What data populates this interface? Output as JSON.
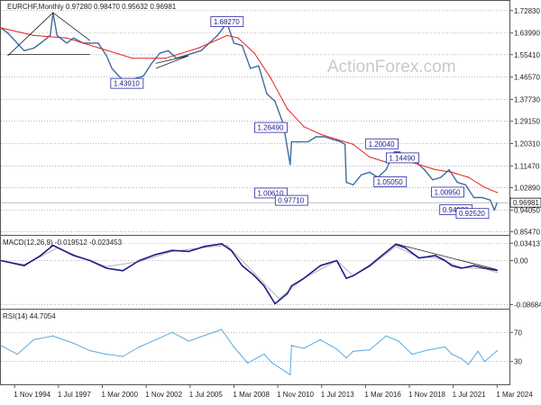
{
  "chart_data": [
    {
      "type": "line",
      "header": "EURCHF,Monthly  0.97280  0.98470  0.95632  0.96981",
      "y_ticks": [
        "1.72830",
        "1.63990",
        "1.55410",
        "1.46570",
        "1.37730",
        "1.29150",
        "1.20310",
        "1.11470",
        "1.02890",
        "0.94050",
        "0.85470"
      ],
      "y_ticks_values": [
        1.7283,
        1.6399,
        1.5541,
        1.4657,
        1.3773,
        1.2915,
        1.2031,
        1.1147,
        1.0289,
        0.9405,
        0.8547
      ],
      "ylim": [
        0.846,
        1.763
      ],
      "current_price": "0.96981",
      "current_value": 0.96981,
      "price": {
        "x": [
          "1994-01",
          "1994-06",
          "1995-06",
          "1996-01",
          "1996-06",
          "1997-01",
          "1997-03",
          "1997-06",
          "1998-01",
          "1998-06",
          "1999-01",
          "1999-06",
          "1999-12",
          "2000-06",
          "2000-10",
          "2001-03",
          "2001-09",
          "2002-03",
          "2002-09",
          "2003-03",
          "2003-09",
          "2004-03",
          "2004-09",
          "2005-03",
          "2005-09",
          "2006-03",
          "2006-09",
          "2007-03",
          "2007-10",
          "2008-03",
          "2008-09",
          "2009-03",
          "2009-09",
          "2010-03",
          "2010-09",
          "2011-03",
          "2011-08",
          "2011-09",
          "2012-03",
          "2012-09",
          "2013-03",
          "2013-09",
          "2014-03",
          "2014-09",
          "2014-12",
          "2015-01",
          "2015-06",
          "2015-12",
          "2016-06",
          "2016-12",
          "2017-06",
          "2017-12",
          "2018-04",
          "2018-10",
          "2019-04",
          "2019-10",
          "2020-04",
          "2020-10",
          "2021-04",
          "2021-10",
          "2022-04",
          "2022-10",
          "2023-04",
          "2023-10",
          "2024-01",
          "2024-03"
        ],
        "close": [
          1.66,
          1.64,
          1.57,
          1.58,
          1.6,
          1.63,
          1.72,
          1.63,
          1.6,
          1.62,
          1.6,
          1.6,
          1.6,
          1.55,
          1.5,
          1.47,
          1.44,
          1.46,
          1.47,
          1.52,
          1.56,
          1.57,
          1.54,
          1.55,
          1.56,
          1.57,
          1.6,
          1.63,
          1.68,
          1.6,
          1.59,
          1.5,
          1.51,
          1.4,
          1.37,
          1.28,
          1.12,
          1.21,
          1.21,
          1.21,
          1.23,
          1.23,
          1.22,
          1.21,
          1.2,
          1.05,
          1.04,
          1.08,
          1.09,
          1.07,
          1.1,
          1.17,
          1.17,
          1.13,
          1.13,
          1.1,
          1.06,
          1.07,
          1.1,
          1.05,
          1.04,
          0.99,
          0.99,
          0.98,
          0.94,
          0.96981
        ]
      },
      "ma": {
        "x": [
          "1994-01",
          "1996-01",
          "1998-01",
          "2000-01",
          "2002-01",
          "2004-01",
          "2006-01",
          "2007-10",
          "2008-06",
          "2009-06",
          "2010-06",
          "2011-06",
          "2012-06",
          "2013-06",
          "2014-06",
          "2015-06",
          "2016-06",
          "2017-06",
          "2018-06",
          "2019-06",
          "2020-06",
          "2021-06",
          "2022-06",
          "2023-06",
          "2024-03"
        ],
        "values": [
          1.66,
          1.63,
          1.62,
          1.58,
          1.54,
          1.54,
          1.58,
          1.63,
          1.62,
          1.56,
          1.46,
          1.34,
          1.27,
          1.24,
          1.22,
          1.2,
          1.15,
          1.13,
          1.14,
          1.12,
          1.1,
          1.09,
          1.07,
          1.03,
          1.01
        ]
      },
      "annotations": [
        {
          "text": "1.68270",
          "x": "2007-10",
          "y": 1.6827
        },
        {
          "text": "1.43910",
          "x": "2001-09",
          "y": 1.4391
        },
        {
          "text": "1.26490",
          "x": "2010-06",
          "y": 1.2649
        },
        {
          "text": "1.00610",
          "x": "2010-06",
          "y": 1.0061
        },
        {
          "text": "0.97710",
          "x": "2011-09",
          "y": 0.9771
        },
        {
          "text": "1.20040",
          "x": "2017-03",
          "y": 1.2004
        },
        {
          "text": "1.14490",
          "x": "2018-06",
          "y": 1.1449
        },
        {
          "text": "1.05050",
          "x": "2017-09",
          "y": 1.0505
        },
        {
          "text": "1.00950",
          "x": "2021-03",
          "y": 1.0095
        },
        {
          "text": "0.94020",
          "x": "2021-09",
          "y": 0.9402
        },
        {
          "text": "0.92520",
          "x": "2022-09",
          "y": 0.9252
        }
      ],
      "watermark": "ActionForex.com"
    },
    {
      "type": "line",
      "header": "MACD(12,26,9) -0.019512 -0.023453",
      "y_ticks": [
        "0.034137",
        "0.00",
        "-0.086849"
      ],
      "y_ticks_values": [
        0.034137,
        0.0,
        -0.086849
      ],
      "ylim": [
        -0.093,
        0.047
      ],
      "macd": {
        "x": [
          "1994-01",
          "1995-06",
          "1996-06",
          "1997-03",
          "1998-06",
          "1999-06",
          "2000-06",
          "2001-06",
          "2002-06",
          "2003-06",
          "2004-06",
          "2005-06",
          "2006-06",
          "2007-06",
          "2008-01",
          "2008-09",
          "2009-06",
          "2010-01",
          "2010-09",
          "2011-06",
          "2011-09",
          "2012-06",
          "2013-06",
          "2014-06",
          "2015-01",
          "2015-06",
          "2016-06",
          "2017-03",
          "2018-01",
          "2018-08",
          "2019-06",
          "2020-06",
          "2021-01",
          "2021-06",
          "2022-01",
          "2022-10",
          "2023-06",
          "2024-03"
        ],
        "values": [
          0.0,
          -0.01,
          0.01,
          0.03,
          0.01,
          0.0,
          -0.015,
          -0.02,
          0.0,
          0.012,
          0.02,
          0.018,
          0.028,
          0.033,
          0.02,
          -0.01,
          -0.03,
          -0.05,
          -0.085,
          -0.065,
          -0.05,
          -0.035,
          -0.01,
          0.0,
          -0.035,
          -0.03,
          -0.01,
          0.01,
          0.032,
          0.025,
          0.005,
          0.01,
          0.0,
          -0.01,
          -0.015,
          -0.01,
          -0.015,
          -0.0195
        ]
      },
      "signal": {
        "x": [
          "1994-01",
          "1995-06",
          "1996-06",
          "1997-06",
          "1998-06",
          "2000-06",
          "2002-06",
          "2004-06",
          "2006-06",
          "2007-10",
          "2008-09",
          "2010-01",
          "2010-12",
          "2012-06",
          "2014-06",
          "2015-06",
          "2016-06",
          "2018-01",
          "2019-06",
          "2020-06",
          "2022-01",
          "2023-06",
          "2024-03"
        ],
        "values": [
          0.0,
          -0.008,
          0.008,
          0.025,
          0.012,
          -0.012,
          -0.002,
          0.018,
          0.026,
          0.03,
          0.0,
          -0.045,
          -0.075,
          -0.035,
          0.0,
          -0.03,
          -0.012,
          0.028,
          0.006,
          0.006,
          -0.014,
          -0.016,
          -0.0235
        ]
      }
    },
    {
      "type": "line",
      "header": "RSI(14) 44.7054",
      "y_ticks": [
        "70",
        "30"
      ],
      "y_ticks_values": [
        70,
        30
      ],
      "ylim": [
        0,
        100
      ],
      "rsi": {
        "x": [
          "1994-01",
          "1995-01",
          "1996-01",
          "1997-03",
          "1998-06",
          "1999-06",
          "2000-06",
          "2001-06",
          "2002-06",
          "2003-06",
          "2004-06",
          "2005-06",
          "2006-06",
          "2007-06",
          "2008-03",
          "2009-01",
          "2010-01",
          "2010-07",
          "2011-08",
          "2011-09",
          "2012-06",
          "2013-06",
          "2014-06",
          "2015-01",
          "2015-06",
          "2016-06",
          "2017-06",
          "2018-03",
          "2019-01",
          "2020-01",
          "2021-01",
          "2021-06",
          "2022-01",
          "2022-06",
          "2023-01",
          "2023-06",
          "2024-03"
        ],
        "values": [
          52,
          40,
          60,
          65,
          55,
          45,
          40,
          37,
          50,
          60,
          70,
          58,
          66,
          74,
          50,
          28,
          40,
          28,
          12,
          52,
          48,
          60,
          47,
          35,
          44,
          46,
          65,
          58,
          40,
          46,
          50,
          40,
          34,
          26,
          44,
          30,
          44.7054
        ]
      }
    }
  ],
  "x_axis": {
    "labels": [
      "1 Nov 1994",
      "1 Jul 1997",
      "1 Mar 2000",
      "1 Nov 2002",
      "1 Jul 2005",
      "1 Mar 2008",
      "1 Nov 2010",
      "1 Jul 2013",
      "1 Mar 2016",
      "1 Nov 2018",
      "1 Jul 2021",
      "1 Mar 2024"
    ],
    "dates": [
      "1994-11",
      "1997-07",
      "2000-03",
      "2002-11",
      "2005-07",
      "2008-03",
      "2010-11",
      "2013-07",
      "2016-03",
      "2018-11",
      "2021-07",
      "2024-03"
    ],
    "range": [
      "1994-01",
      "2024-12"
    ]
  },
  "colors": {
    "price": "#3c6e9c",
    "ma": "#e52020",
    "macd": "#1c1c8c",
    "macd_signal": "#b4b4b4",
    "rsi": "#5aaae0",
    "trendline": "#202020",
    "annotation_border": "#2a2aa0",
    "gridline": "#8c8c8c"
  },
  "gridlines": "dotted"
}
